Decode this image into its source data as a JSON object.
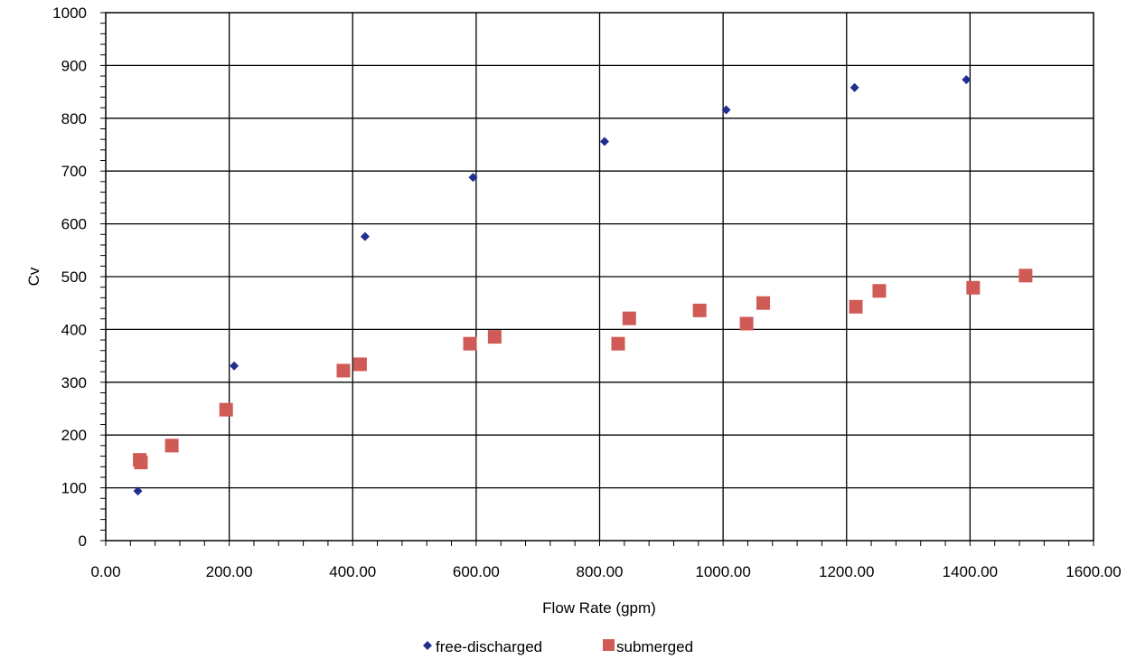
{
  "chart_data": {
    "type": "scatter",
    "title": "",
    "xlabel": "Flow Rate (gpm)",
    "ylabel": "Cv",
    "xlim": [
      0,
      1600
    ],
    "ylim": [
      0,
      1000
    ],
    "x_ticks": [
      "0.00",
      "200.00",
      "400.00",
      "600.00",
      "800.00",
      "1000.00",
      "1200.00",
      "1400.00",
      "1600.00"
    ],
    "y_ticks": [
      "0",
      "100",
      "200",
      "300",
      "400",
      "500",
      "600",
      "700",
      "800",
      "900",
      "1000"
    ],
    "grid": true,
    "legend_position": "bottom",
    "series": [
      {
        "name": "free-discharged",
        "color": "#1f2f8f",
        "marker": "diamond",
        "points": [
          {
            "x": 52,
            "y": 94
          },
          {
            "x": 105,
            "y": 185
          },
          {
            "x": 208,
            "y": 331
          },
          {
            "x": 420,
            "y": 576
          },
          {
            "x": 595,
            "y": 688
          },
          {
            "x": 808,
            "y": 756
          },
          {
            "x": 1005,
            "y": 816
          },
          {
            "x": 1213,
            "y": 858
          },
          {
            "x": 1394,
            "y": 873
          }
        ]
      },
      {
        "name": "submerged",
        "color": "#d05a55",
        "marker": "square",
        "points": [
          {
            "x": 55,
            "y": 153
          },
          {
            "x": 57,
            "y": 148
          },
          {
            "x": 107,
            "y": 180
          },
          {
            "x": 195,
            "y": 248
          },
          {
            "x": 385,
            "y": 322
          },
          {
            "x": 412,
            "y": 334
          },
          {
            "x": 590,
            "y": 373
          },
          {
            "x": 630,
            "y": 386
          },
          {
            "x": 830,
            "y": 373
          },
          {
            "x": 848,
            "y": 421
          },
          {
            "x": 962,
            "y": 436
          },
          {
            "x": 1038,
            "y": 411
          },
          {
            "x": 1065,
            "y": 450
          },
          {
            "x": 1215,
            "y": 443
          },
          {
            "x": 1253,
            "y": 473
          },
          {
            "x": 1405,
            "y": 479
          },
          {
            "x": 1490,
            "y": 502
          }
        ]
      }
    ]
  }
}
